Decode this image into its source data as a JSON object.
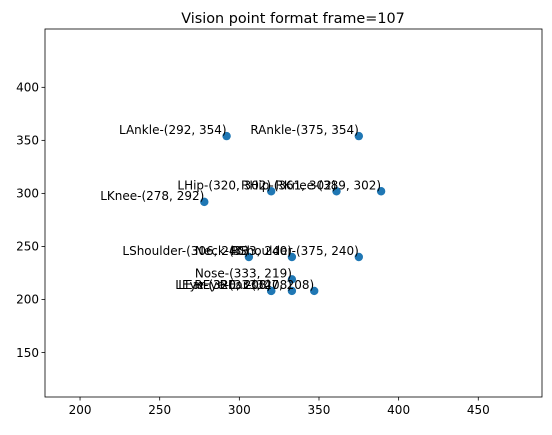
{
  "chart_data": {
    "type": "scatter",
    "title": "Vision point format frame=107",
    "xlabel": "",
    "ylabel": "",
    "xlim": [
      178,
      490
    ],
    "ylim": [
      108,
      455
    ],
    "xticks": [
      200,
      250,
      300,
      350,
      400,
      450
    ],
    "yticks": [
      150,
      200,
      250,
      300,
      350,
      400
    ],
    "grid": false,
    "marker_color": "#1f77b4",
    "points": [
      {
        "label": "LAnkle-(292, 354)",
        "x": 292,
        "y": 354
      },
      {
        "label": "RAnkle-(375, 354)",
        "x": 375,
        "y": 354
      },
      {
        "label": "LHip-(320, 302)",
        "x": 320,
        "y": 302
      },
      {
        "label": "RHip-(361, 302)",
        "x": 361,
        "y": 302
      },
      {
        "label": "RKnee-(389, 302)",
        "x": 389,
        "y": 302
      },
      {
        "label": "LKnee-(278, 292)",
        "x": 278,
        "y": 292
      },
      {
        "label": "LShoulder-(306, 240)",
        "x": 306,
        "y": 240
      },
      {
        "label": "Neck-(333, 240)",
        "x": 333,
        "y": 240
      },
      {
        "label": "RShoulder-(375, 240)",
        "x": 375,
        "y": 240
      },
      {
        "label": "Nose-(333, 219)",
        "x": 333,
        "y": 219
      },
      {
        "label": "LEye-(320, 208)",
        "x": 320,
        "y": 208
      },
      {
        "label": "LEar-(320, 208)",
        "x": 320,
        "y": 208
      },
      {
        "label": "REye-(333, 208)",
        "x": 333,
        "y": 208
      },
      {
        "label": "REar-(347, 208)",
        "x": 347,
        "y": 208
      }
    ]
  }
}
